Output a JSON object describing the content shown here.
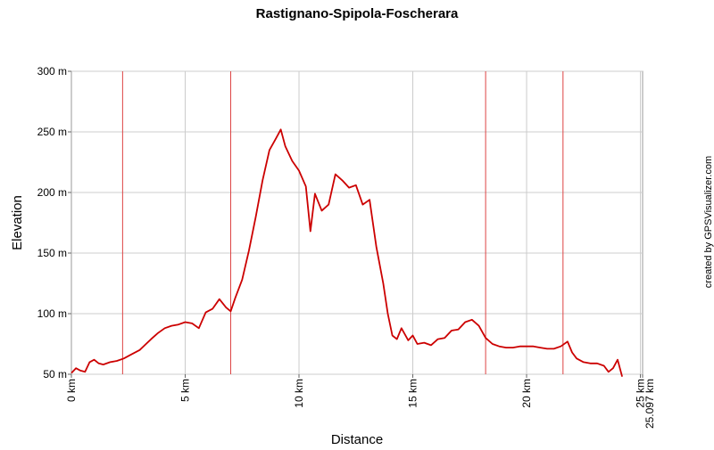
{
  "chart_data": {
    "type": "line",
    "title": "Rastignano-Spipola-Foscherara",
    "xlabel": "Distance",
    "ylabel": "Elevation",
    "credit": "created by GPSVisualizer.com",
    "xlim": [
      0,
      25.097
    ],
    "ylim": [
      50,
      300
    ],
    "x_ticks": [
      {
        "value": 0,
        "label": "0 km"
      },
      {
        "value": 5,
        "label": "5 km"
      },
      {
        "value": 10,
        "label": "10 km"
      },
      {
        "value": 15,
        "label": "15 km"
      },
      {
        "value": 20,
        "label": "20 km"
      },
      {
        "value": 25,
        "label": "25 km"
      },
      {
        "value": 25.097,
        "label": "25.097 km"
      }
    ],
    "y_ticks": [
      {
        "value": 300,
        "label": "300 m"
      },
      {
        "value": 250,
        "label": "250 m"
      },
      {
        "value": 200,
        "label": "200 m"
      },
      {
        "value": 150,
        "label": "150 m"
      },
      {
        "value": 100,
        "label": "100 m"
      },
      {
        "value": 50,
        "label": "50 m"
      }
    ],
    "markers_km": [
      2.25,
      7.0,
      18.2,
      21.6
    ],
    "line_color": "#cc0000",
    "marker_color": "#dd4444",
    "grid": true,
    "series": [
      {
        "x": [
          0,
          0.2,
          0.4,
          0.6,
          0.8,
          1.0,
          1.2,
          1.4,
          1.7,
          2.0,
          2.3,
          2.6,
          3.0,
          3.5,
          3.8,
          4.1,
          4.4,
          4.7,
          5.0,
          5.3,
          5.6,
          5.9,
          6.2,
          6.5,
          6.8,
          7.0,
          7.2,
          7.5,
          7.8,
          8.1,
          8.4,
          8.7,
          9.0,
          9.2,
          9.4,
          9.7,
          10.0,
          10.3,
          10.5,
          10.7,
          11.0,
          11.3,
          11.6,
          11.9,
          12.2,
          12.5,
          12.8,
          13.1,
          13.4,
          13.7,
          13.9,
          14.1,
          14.3,
          14.5,
          14.8,
          15.0,
          15.2,
          15.5,
          15.8,
          16.1,
          16.4,
          16.7,
          17.0,
          17.3,
          17.6,
          17.9,
          18.2,
          18.5,
          18.8,
          19.1,
          19.4,
          19.7,
          20.0,
          20.3,
          20.6,
          20.9,
          21.2,
          21.5,
          21.8,
          22.0,
          22.2,
          22.5,
          22.8,
          23.1,
          23.4,
          23.6,
          23.8,
          24.0,
          24.2
        ],
        "y": [
          51,
          55,
          53,
          52,
          60,
          62,
          59,
          58,
          60,
          61,
          63,
          66,
          70,
          79,
          84,
          88,
          90,
          91,
          93,
          92,
          88,
          101,
          104,
          112,
          105,
          102,
          113,
          128,
          152,
          180,
          210,
          235,
          245,
          252,
          238,
          226,
          218,
          205,
          168,
          199,
          185,
          190,
          215,
          210,
          204,
          206,
          190,
          194,
          155,
          125,
          100,
          82,
          79,
          88,
          78,
          82,
          75,
          76,
          74,
          79,
          80,
          86,
          87,
          93,
          95,
          90,
          80,
          75,
          73,
          72,
          72,
          73,
          73,
          73,
          72,
          71,
          71,
          73,
          77,
          68,
          63,
          60,
          59,
          59,
          57,
          52,
          55,
          62,
          48
        ]
      }
    ]
  }
}
